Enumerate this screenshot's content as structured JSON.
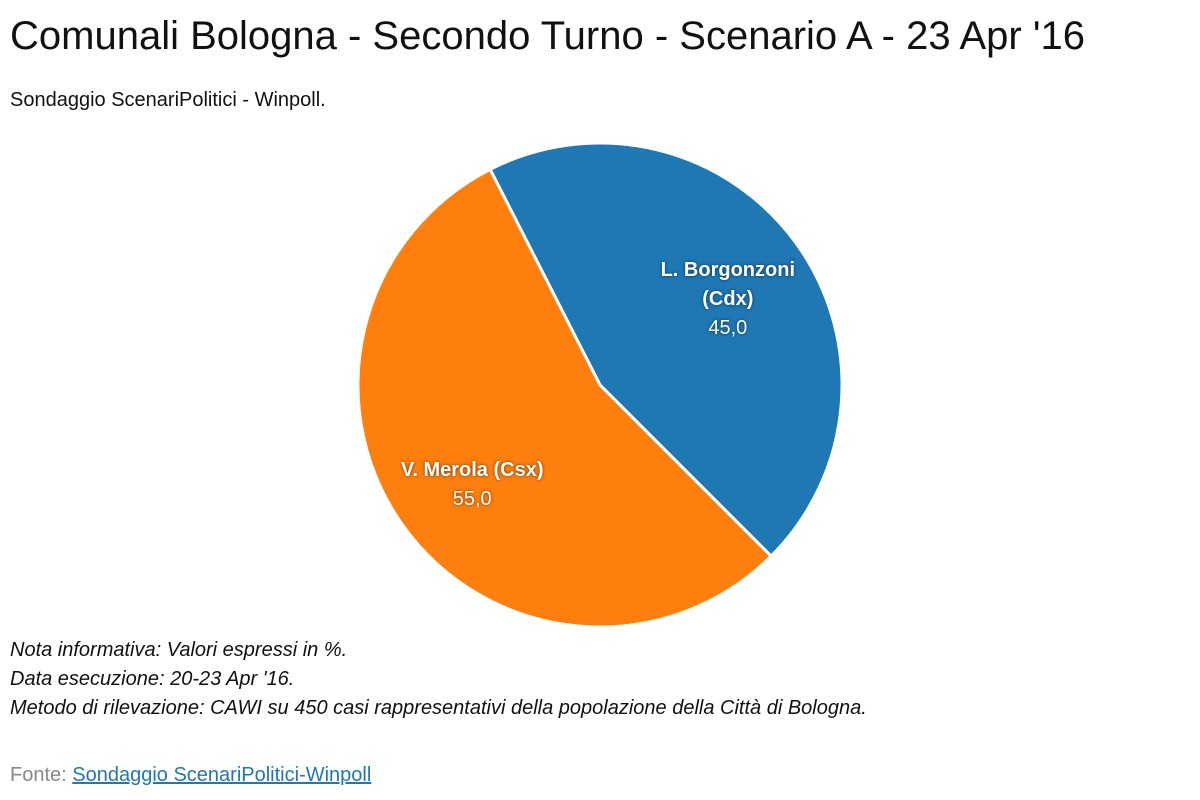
{
  "chart_data": {
    "type": "pie",
    "title": "Comunali Bologna - Secondo Turno - Scenario A - 23 Apr '16",
    "subtitle": "Sondaggio ScenariPolitici - Winpoll.",
    "categories": [
      "L. Borgonzoni (Cdx)",
      "V. Merola (Csx)"
    ],
    "values": [
      45,
      55
    ],
    "value_labels": [
      "45,0",
      "55,0"
    ],
    "colors": [
      "#1f77b4",
      "#ff7f0e"
    ],
    "notes": [
      "Nota informativa: Valori espressi in %.",
      "Data esecuzione: 20-23 Apr '16.",
      "Metodo di rilevazione: CAWI su 450 casi rappresentativi della popolazione della Città di Bologna."
    ],
    "source_label": "Fonte:",
    "source_link": "Sondaggio ScenariPolitici-Winpoll"
  }
}
